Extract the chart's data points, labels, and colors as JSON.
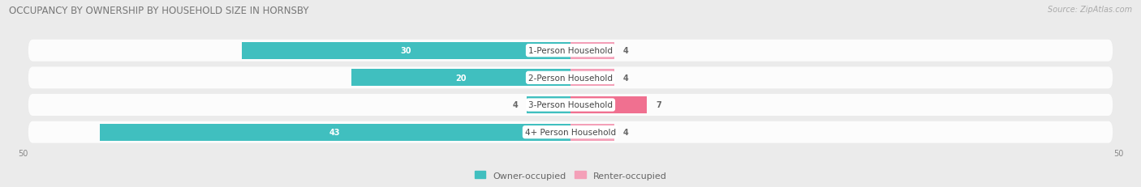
{
  "title": "OCCUPANCY BY OWNERSHIP BY HOUSEHOLD SIZE IN HORNSBY",
  "source": "Source: ZipAtlas.com",
  "categories": [
    "1-Person Household",
    "2-Person Household",
    "3-Person Household",
    "4+ Person Household"
  ],
  "owner_values": [
    30,
    20,
    4,
    43
  ],
  "renter_values": [
    4,
    4,
    7,
    4
  ],
  "owner_color": "#40BFBF",
  "renter_color_light": "#F4A0B8",
  "renter_color_dark": "#F07090",
  "owner_label": "Owner-occupied",
  "renter_label": "Renter-occupied",
  "axis_max": 50,
  "background_color": "#ebebeb",
  "row_bg_color": "#f5f5f5",
  "title_fontsize": 8.5,
  "source_fontsize": 7,
  "bar_label_fontsize": 7,
  "cat_label_fontsize": 7.5,
  "tick_fontsize": 7,
  "legend_fontsize": 8
}
